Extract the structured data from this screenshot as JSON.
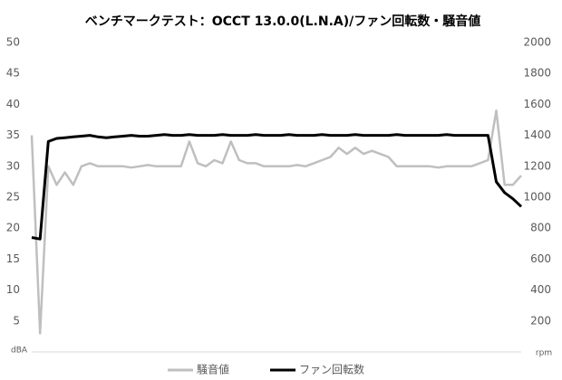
{
  "chart_data": {
    "type": "line",
    "title": "ベンチマークテスト：OCCT 13.0.0(L.N.A)/ファン回転数・騒音値",
    "ylabel": "dBA",
    "y2label": "rpm",
    "ylim": [
      0,
      50
    ],
    "yticks": [
      5,
      10,
      15,
      20,
      25,
      30,
      35,
      40,
      45,
      50
    ],
    "y2lim": [
      0,
      2000
    ],
    "y2ticks": [
      200,
      400,
      600,
      800,
      1000,
      1200,
      1400,
      1600,
      1800,
      2000
    ],
    "grid": false,
    "legend": "bottom",
    "series": [
      {
        "name": "騒音値",
        "color": "#bfbfbf",
        "values": [
          35,
          3,
          30,
          27,
          29,
          27,
          30,
          30.5,
          30,
          30,
          30,
          30,
          29.8,
          30,
          30.2,
          30,
          30,
          30,
          30,
          34,
          30.5,
          30,
          31,
          30.5,
          34,
          31,
          30.5,
          30.5,
          30,
          30,
          30,
          30,
          30.2,
          30,
          30.5,
          31,
          31.5,
          33,
          32,
          33,
          32,
          32.5,
          32,
          31.5,
          30,
          30,
          30,
          30,
          30,
          29.8,
          30,
          30,
          30,
          30,
          30.5,
          31,
          39,
          27,
          27,
          28.5
        ]
      },
      {
        "name": "ファン回転数",
        "color": "#000000",
        "axis": "y2",
        "values": [
          740,
          730,
          1360,
          1380,
          1385,
          1390,
          1395,
          1400,
          1390,
          1385,
          1390,
          1395,
          1400,
          1395,
          1395,
          1400,
          1405,
          1400,
          1400,
          1405,
          1400,
          1400,
          1400,
          1405,
          1400,
          1400,
          1400,
          1405,
          1400,
          1400,
          1400,
          1405,
          1400,
          1400,
          1400,
          1405,
          1400,
          1400,
          1400,
          1405,
          1400,
          1400,
          1400,
          1400,
          1405,
          1400,
          1400,
          1400,
          1400,
          1400,
          1405,
          1400,
          1400,
          1400,
          1400,
          1400,
          1100,
          1030,
          990,
          940
        ]
      }
    ]
  }
}
